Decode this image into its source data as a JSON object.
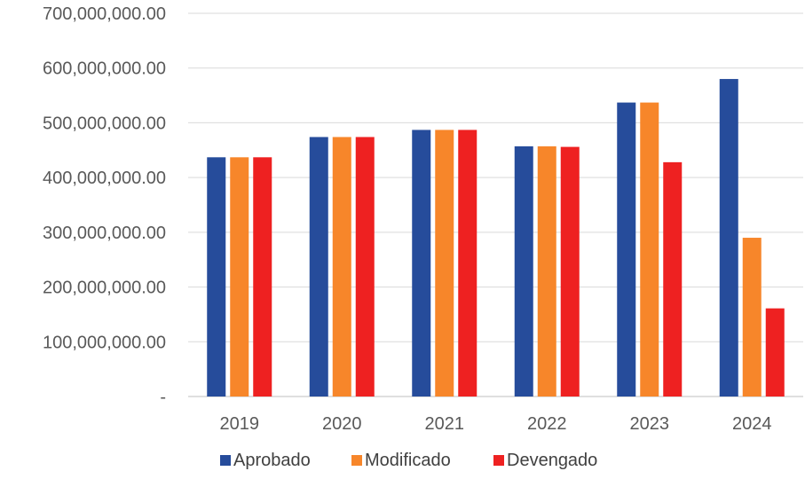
{
  "chart_data": {
    "type": "bar",
    "categories": [
      "2019",
      "2020",
      "2021",
      "2022",
      "2023",
      "2024"
    ],
    "series": [
      {
        "name": "Aprobado",
        "color": "#264C9B",
        "values": [
          437000000,
          474000000,
          487000000,
          457000000,
          537000000,
          580000000
        ]
      },
      {
        "name": "Modificado",
        "color": "#F7862A",
        "values": [
          437000000,
          474000000,
          487000000,
          457000000,
          537000000,
          290000000
        ]
      },
      {
        "name": "Devengado",
        "color": "#EE2121",
        "values": [
          437000000,
          474000000,
          487000000,
          456000000,
          428000000,
          161000000
        ]
      }
    ],
    "ylim": [
      0,
      700000000
    ],
    "y_ticks": [
      {
        "value": 0,
        "label": "-"
      },
      {
        "value": 100000000,
        "label": "100,000,000.00"
      },
      {
        "value": 200000000,
        "label": "200,000,000.00"
      },
      {
        "value": 300000000,
        "label": "300,000,000.00"
      },
      {
        "value": 400000000,
        "label": "400,000,000.00"
      },
      {
        "value": 500000000,
        "label": "500,000,000.00"
      },
      {
        "value": 600000000,
        "label": "600,000,000.00"
      },
      {
        "value": 700000000,
        "label": "700,000,000.00"
      }
    ],
    "grid": true,
    "legend_position": "bottom",
    "title": "",
    "xlabel": "",
    "ylabel": ""
  }
}
